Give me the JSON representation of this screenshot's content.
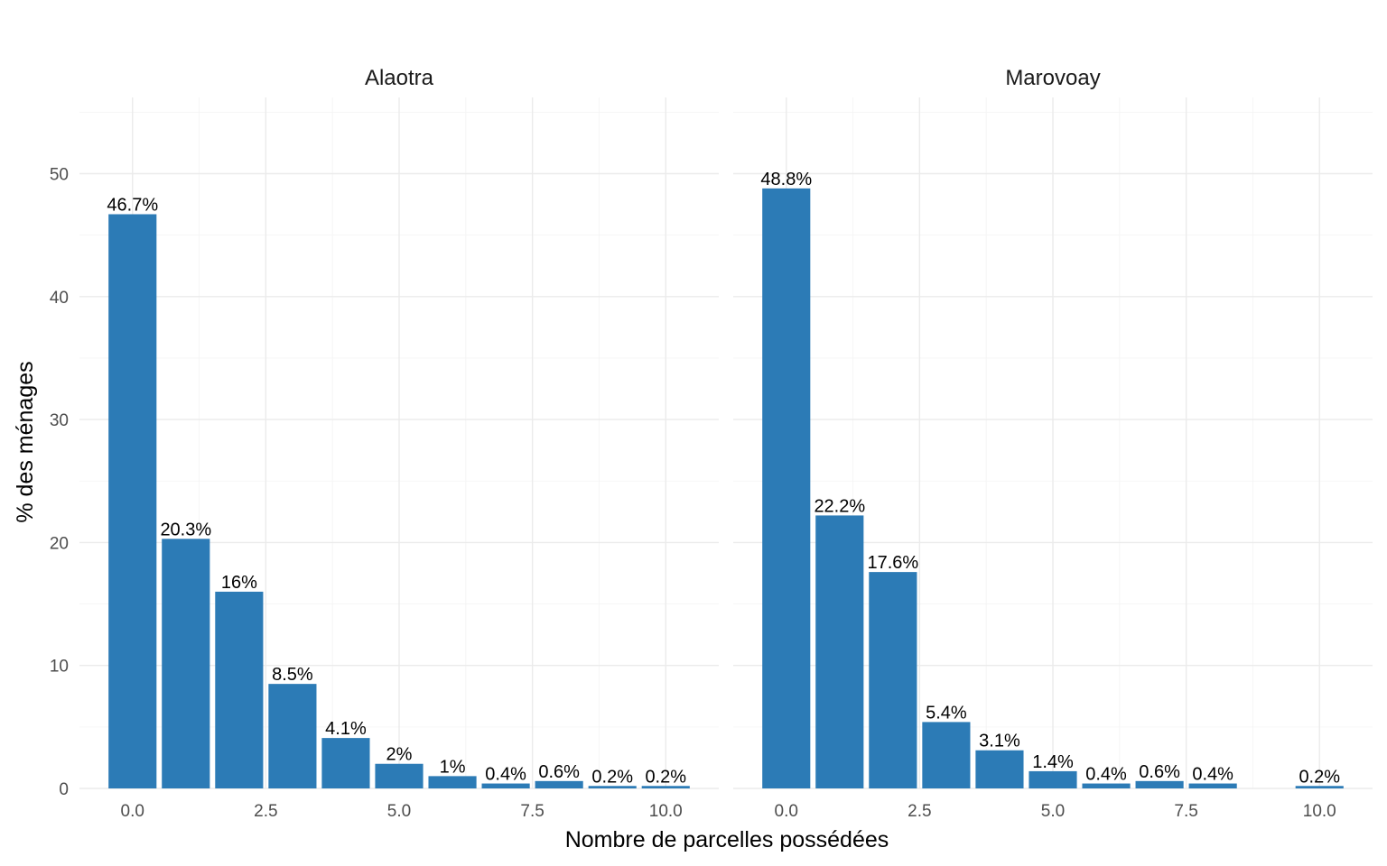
{
  "chart_data": {
    "type": "bar",
    "title": "",
    "xlabel": "Nombre de parcelles possédées",
    "ylabel": "% des ménages",
    "xlim": [
      -0.995,
      10.995
    ],
    "ylim": [
      0,
      56.2
    ],
    "x_ticks": [
      "0.0",
      "2.5",
      "5.0",
      "7.5",
      "10.0"
    ],
    "x_tick_values": [
      0,
      2.5,
      5,
      7.5,
      10
    ],
    "y_ticks": [
      "0",
      "10",
      "20",
      "30",
      "40",
      "50"
    ],
    "y_tick_values": [
      0,
      10,
      20,
      30,
      40,
      50
    ],
    "grid": true,
    "bar_color": "#2c7bb6",
    "panels": [
      {
        "name": "Alaotra",
        "x": [
          0,
          1,
          2,
          3,
          4,
          5,
          6,
          7,
          8,
          9,
          10
        ],
        "values": [
          46.7,
          20.3,
          16,
          8.5,
          4.1,
          2,
          1,
          0.4,
          0.6,
          0.2,
          0.2
        ],
        "labels": [
          "46.7%",
          "20.3%",
          "16%",
          "8.5%",
          "4.1%",
          "2%",
          "1%",
          "0.4%",
          "0.6%",
          "0.2%",
          "0.2%"
        ]
      },
      {
        "name": "Marovoay",
        "x": [
          0,
          1,
          2,
          3,
          4,
          5,
          6,
          7,
          8,
          10
        ],
        "values": [
          48.8,
          22.2,
          17.6,
          5.4,
          3.1,
          1.4,
          0.4,
          0.6,
          0.4,
          0.2
        ],
        "labels": [
          "48.8%",
          "22.2%",
          "17.6%",
          "5.4%",
          "3.1%",
          "1.4%",
          "0.4%",
          "0.6%",
          "0.4%",
          "0.2%"
        ]
      }
    ]
  }
}
